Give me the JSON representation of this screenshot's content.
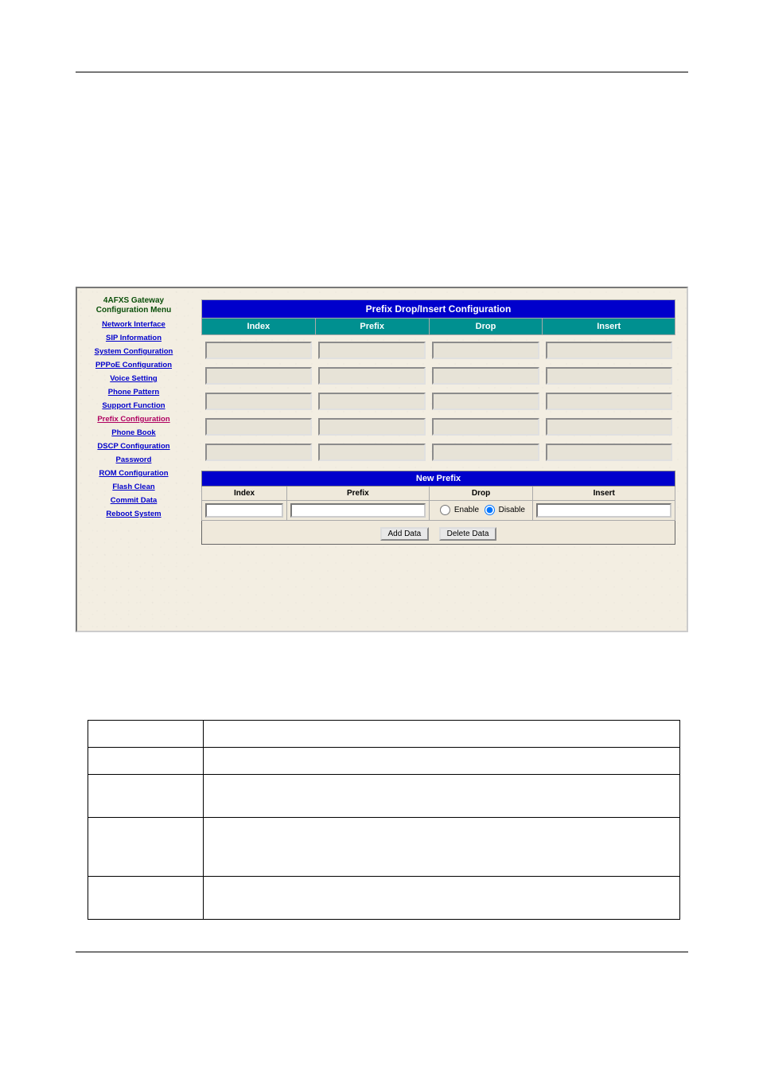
{
  "sidebar": {
    "title_line1": "4AFXS Gateway",
    "title_line2": "Configuration Menu",
    "items": [
      {
        "label": "Network Interface",
        "active": false
      },
      {
        "label": "SIP Information",
        "active": false
      },
      {
        "label": "System Configuration",
        "active": false
      },
      {
        "label": "PPPoE Configuration",
        "active": false
      },
      {
        "label": "Voice Setting",
        "active": false
      },
      {
        "label": "Phone Pattern",
        "active": false
      },
      {
        "label": "Support Function",
        "active": false
      },
      {
        "label": "Prefix Configuration",
        "active": true
      },
      {
        "label": "Phone Book",
        "active": false
      },
      {
        "label": "DSCP Configuration",
        "active": false
      },
      {
        "label": "Password",
        "active": false
      },
      {
        "label": "ROM Configuration",
        "active": false
      },
      {
        "label": "Flash Clean",
        "active": false
      },
      {
        "label": "Commit Data",
        "active": false
      },
      {
        "label": "Reboot System",
        "active": false
      }
    ]
  },
  "main": {
    "title": "Prefix Drop/Insert Configuration",
    "columns": [
      "Index",
      "Prefix",
      "Drop",
      "Insert"
    ],
    "row_count": 5,
    "col_widths_percent": [
      24,
      24,
      24,
      28
    ],
    "title_bg": "#0000cc",
    "title_color": "#ffffff",
    "header_bg": "#009090",
    "header_color": "#ffffff",
    "cell_bg": "#e7e3d7"
  },
  "new_prefix": {
    "title": "New Prefix",
    "columns": [
      "Index",
      "Prefix",
      "Drop",
      "Insert"
    ],
    "col_widths_percent": [
      18,
      30,
      22,
      30
    ],
    "radio_enable_label": "Enable",
    "radio_disable_label": "Disable",
    "radio_selected": "disable",
    "buttons": {
      "add": "Add Data",
      "delete": "Delete Data"
    }
  },
  "desc_table": {
    "rows": [
      {
        "h": "r2"
      },
      {
        "h": "r2"
      },
      {
        "h": "r3"
      },
      {
        "h": "r4"
      },
      {
        "h": "r5"
      }
    ]
  }
}
